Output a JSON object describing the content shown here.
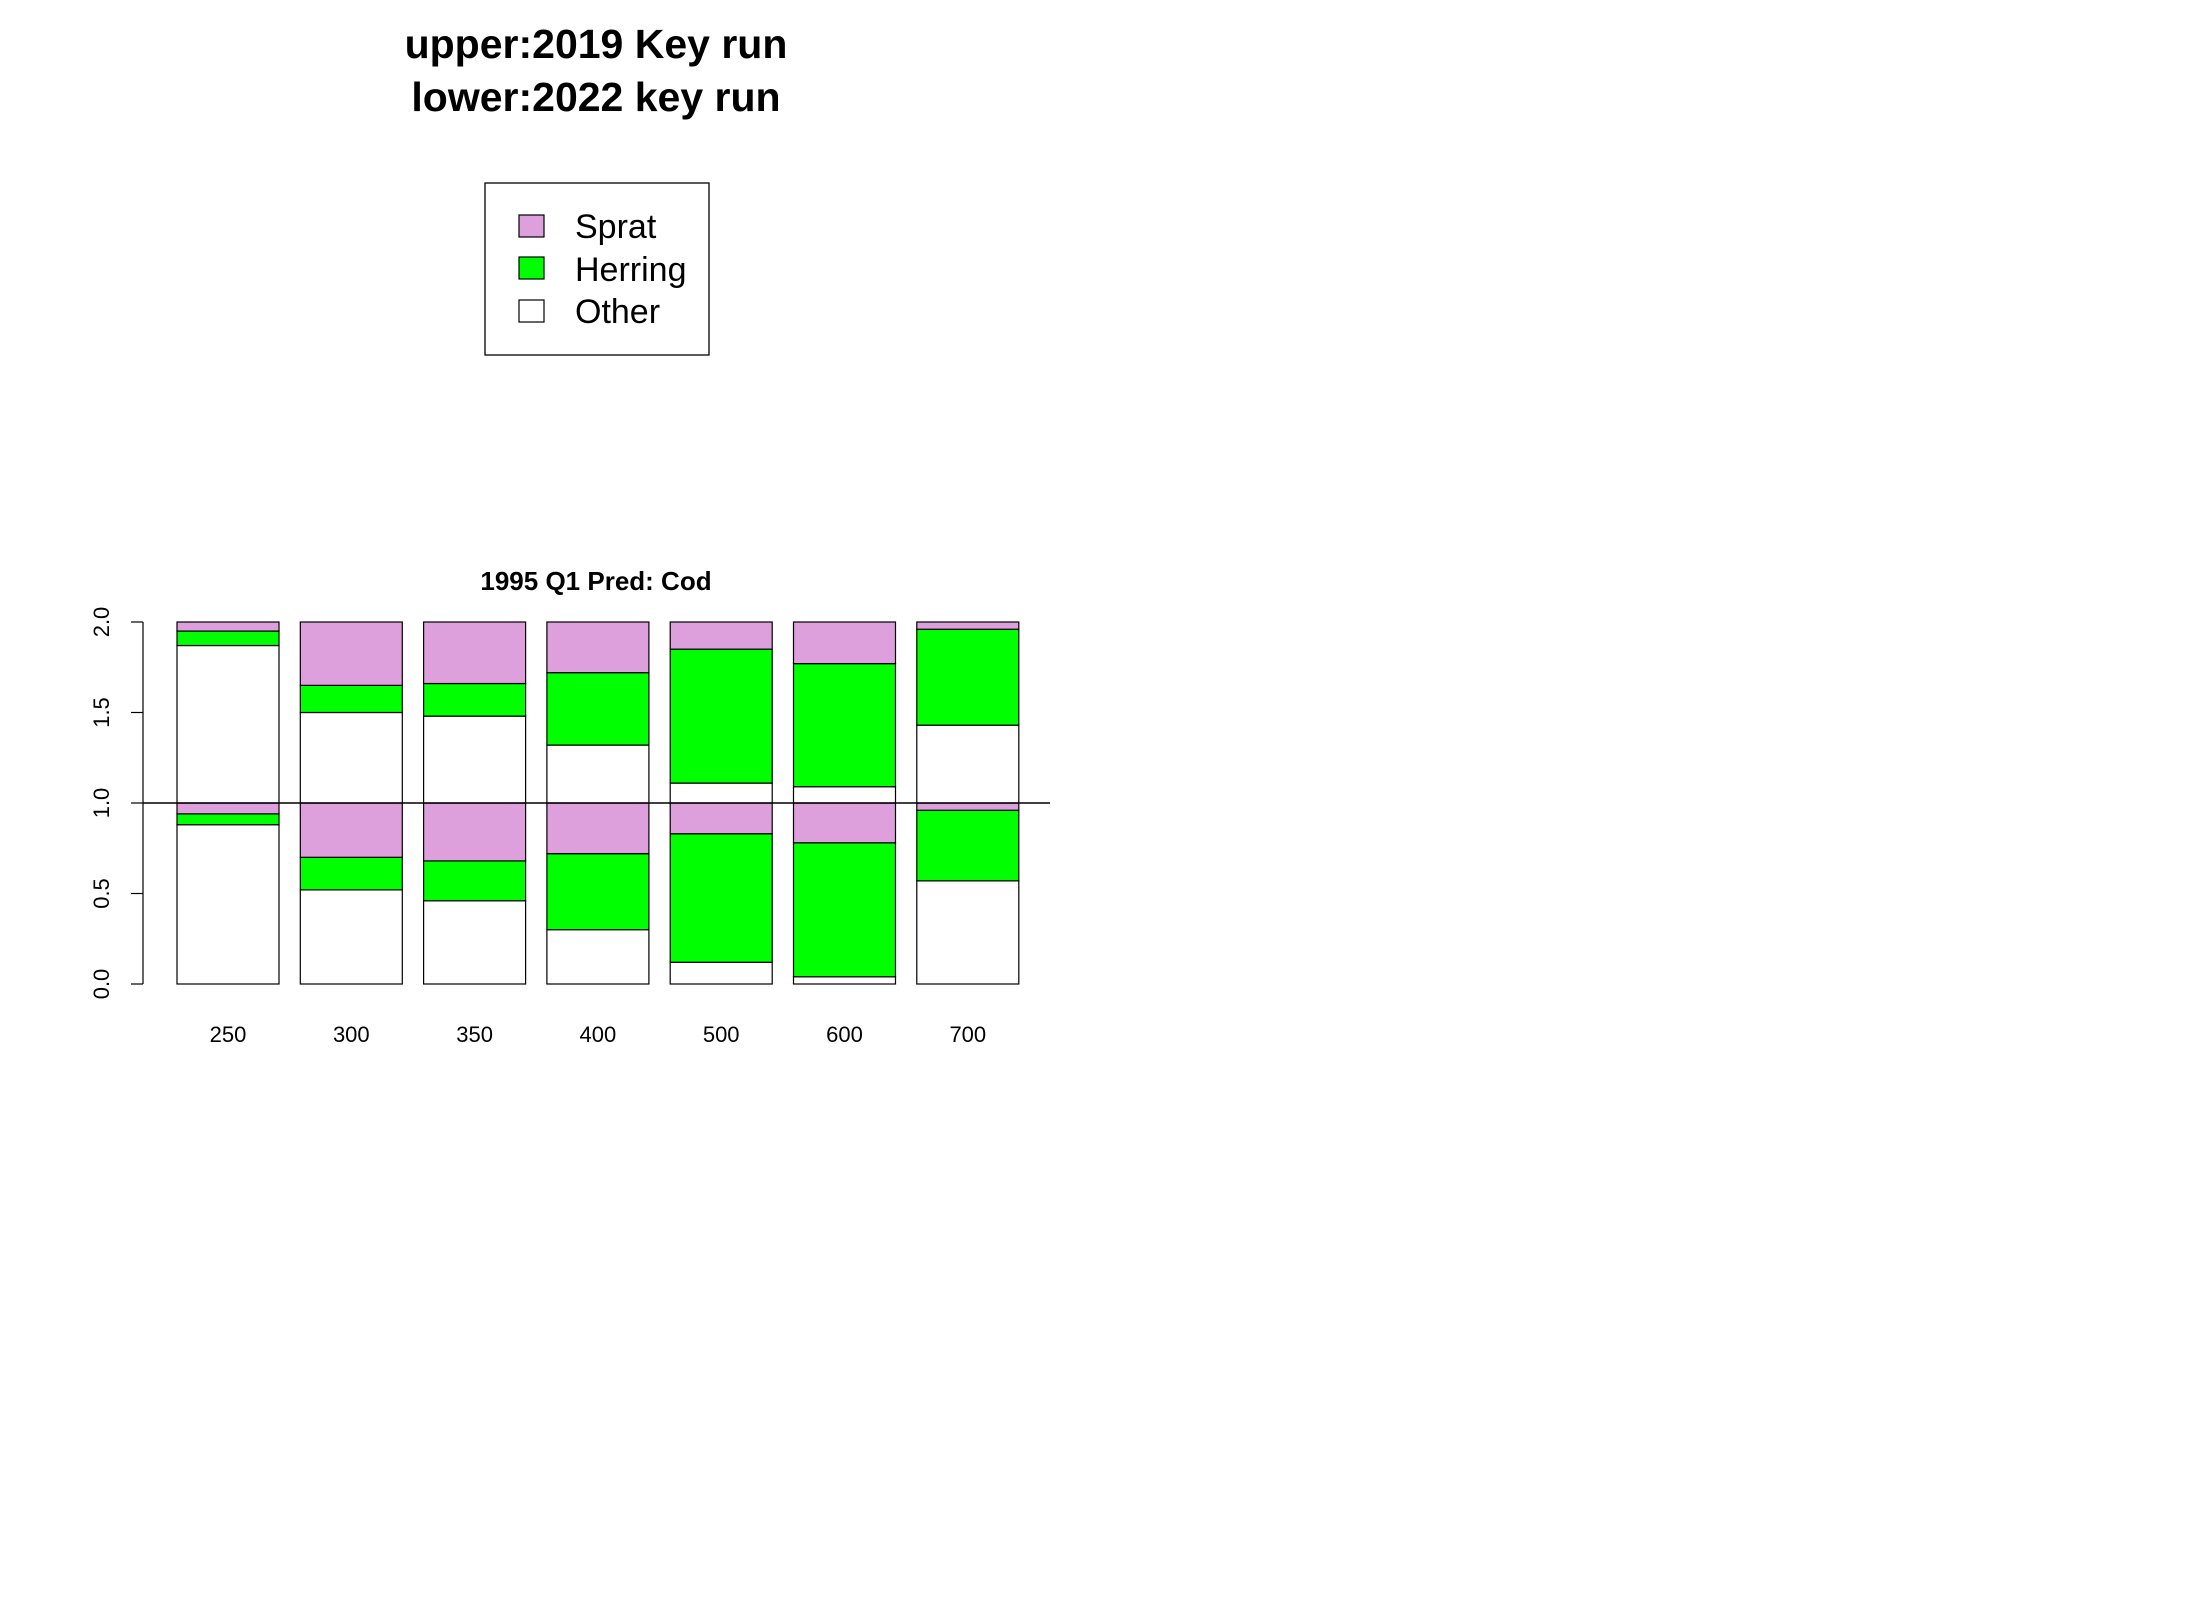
{
  "header": {
    "title_line1": "upper:2019 Key run",
    "title_line2": "lower:2022 key run"
  },
  "legend": {
    "placement": "top-center",
    "items": [
      {
        "label": "Sprat",
        "color": "#DDA0DD"
      },
      {
        "label": "Herring",
        "color": "#00FF00"
      },
      {
        "label": "Other",
        "color": "#FFFFFF"
      }
    ]
  },
  "chart_data": {
    "type": "bar",
    "title": "1995 Q1  Pred: Cod",
    "xlabel": "",
    "ylabel": "",
    "categories": [
      "250",
      "300",
      "350",
      "400",
      "500",
      "600",
      "700"
    ],
    "ylim": [
      0,
      2
    ],
    "yticks": [
      0.0,
      0.5,
      1.0,
      1.5,
      2.0
    ],
    "ytick_labels": [
      "0.0",
      "0.5",
      "1.0",
      "1.5",
      "2.0"
    ],
    "reference_line": 1.0,
    "stack_order": [
      "Other",
      "Herring",
      "Sprat"
    ],
    "colors": {
      "Sprat": "#DDA0DD",
      "Herring": "#00FF00",
      "Other": "#FFFFFF"
    },
    "upper_series": [
      {
        "name": "Other",
        "values": [
          0.87,
          0.5,
          0.48,
          0.32,
          0.11,
          0.09,
          0.43
        ]
      },
      {
        "name": "Herring",
        "values": [
          0.08,
          0.15,
          0.18,
          0.4,
          0.74,
          0.68,
          0.53
        ]
      },
      {
        "name": "Sprat",
        "values": [
          0.05,
          0.35,
          0.34,
          0.28,
          0.15,
          0.23,
          0.04
        ]
      }
    ],
    "lower_series": [
      {
        "name": "Other",
        "values": [
          0.88,
          0.52,
          0.46,
          0.3,
          0.12,
          0.04,
          0.57
        ]
      },
      {
        "name": "Herring",
        "values": [
          0.06,
          0.18,
          0.22,
          0.42,
          0.71,
          0.74,
          0.39
        ]
      },
      {
        "name": "Sprat",
        "values": [
          0.06,
          0.3,
          0.32,
          0.28,
          0.17,
          0.22,
          0.04
        ]
      }
    ],
    "grid": false
  }
}
